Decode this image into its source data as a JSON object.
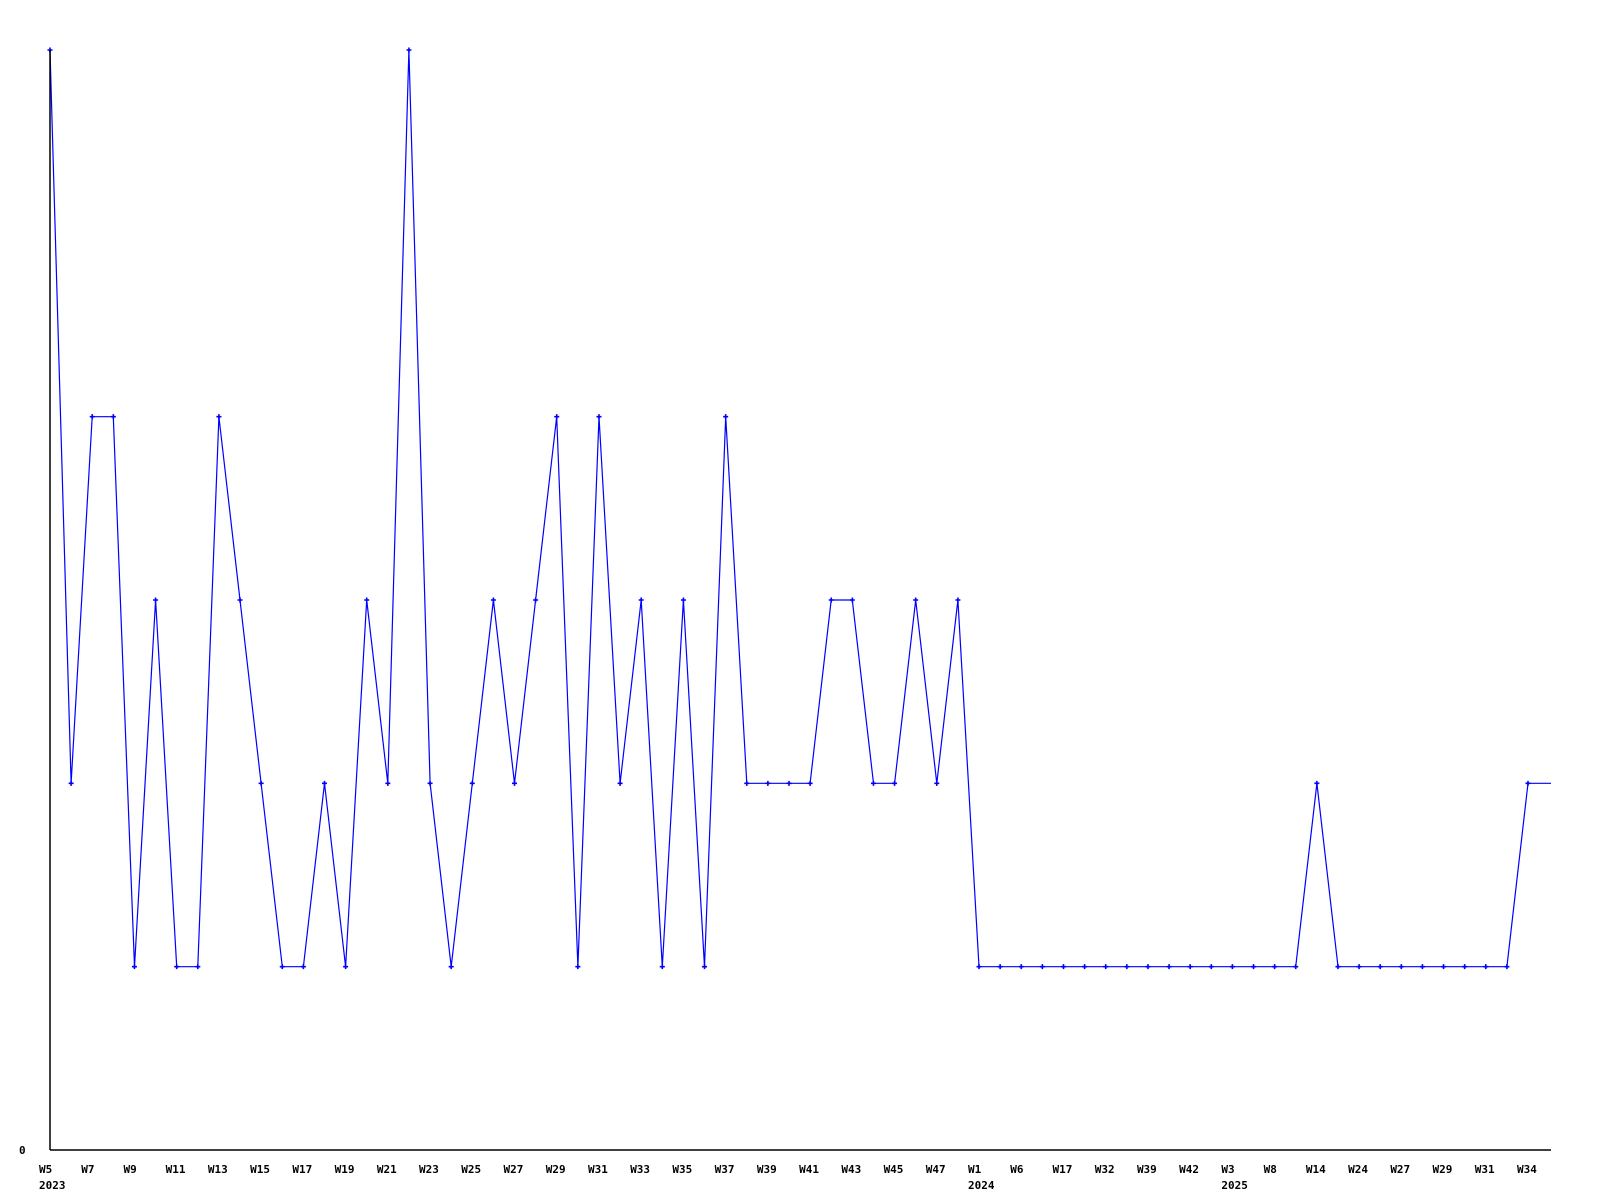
{
  "chart_data": {
    "type": "line",
    "title": "",
    "xlabel": "",
    "ylabel": "",
    "ylim": [
      0,
      6
    ],
    "y_tick_labels": [
      "0"
    ],
    "grid": false,
    "series_color": "#0000ff",
    "axis_color": "#000000",
    "categories": [
      "W5",
      "",
      "W7",
      "",
      "W9",
      "",
      "W11",
      "",
      "W13",
      "",
      "W15",
      "",
      "W17",
      "",
      "W19",
      "",
      "W21",
      "",
      "W23",
      "",
      "W25",
      "",
      "W27",
      "",
      "W29",
      "",
      "W31",
      "",
      "W33",
      "",
      "W35",
      "",
      "W37",
      "",
      "W39",
      "",
      "W41",
      "",
      "W43",
      "",
      "W45",
      "",
      "W47",
      "",
      "W1",
      "",
      "W6",
      "",
      "W17",
      "",
      "W32",
      "",
      "W39",
      "",
      "W42",
      "",
      "W3",
      "",
      "W8",
      "",
      "W14",
      "",
      "W24",
      "",
      "W27",
      "",
      "W29",
      "",
      "W31",
      "",
      "W34"
    ],
    "year_labels": [
      {
        "index": 0,
        "label": "2023"
      },
      {
        "index": 44,
        "label": "2024"
      },
      {
        "index": 56,
        "label": "2025"
      }
    ],
    "values": [
      6,
      2,
      4,
      4,
      1,
      3,
      1,
      1,
      4,
      3,
      2,
      1,
      1,
      2,
      1,
      3,
      2,
      6,
      2,
      1,
      2,
      3,
      2,
      3,
      4,
      1,
      4,
      2,
      3,
      1,
      3,
      1,
      4,
      2,
      2,
      2,
      2,
      3,
      3,
      2,
      2,
      3,
      2,
      3,
      1,
      1,
      1,
      1,
      1,
      1,
      1,
      1,
      1,
      1,
      1,
      1,
      1,
      1,
      1,
      1,
      2,
      1,
      1,
      1,
      1,
      1,
      1,
      1,
      1,
      1,
      2
    ]
  }
}
